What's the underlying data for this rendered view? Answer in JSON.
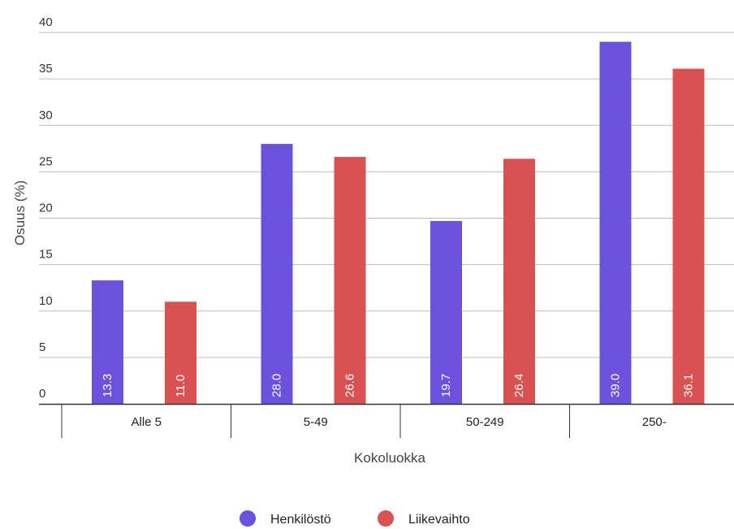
{
  "chart_data": {
    "type": "bar",
    "xlabel": "Kokoluokka",
    "ylabel": "Osuus (%)",
    "categories": [
      "Alle 5",
      "5-49",
      "50-249",
      "250-"
    ],
    "series": [
      {
        "name": "Henkilöstö",
        "color": "#6a52dc",
        "values": [
          13.3,
          28.0,
          19.7,
          39.0
        ],
        "labels": [
          "13.3",
          "28.0",
          "19.7",
          "39.0"
        ]
      },
      {
        "name": "Liikevaihto",
        "color": "#d95252",
        "values": [
          11.0,
          26.6,
          26.4,
          36.1
        ],
        "labels": [
          "11.0",
          "26.6",
          "26.4",
          "36.1"
        ]
      }
    ],
    "ylim": [
      0,
      40
    ],
    "yticks": [
      "0",
      "5",
      "10",
      "15",
      "20",
      "25",
      "30",
      "35",
      "40"
    ],
    "grid": true,
    "legend_position": "bottom-center",
    "colors": {
      "gridline": "#bdbdbd",
      "axis": "#333333"
    }
  }
}
